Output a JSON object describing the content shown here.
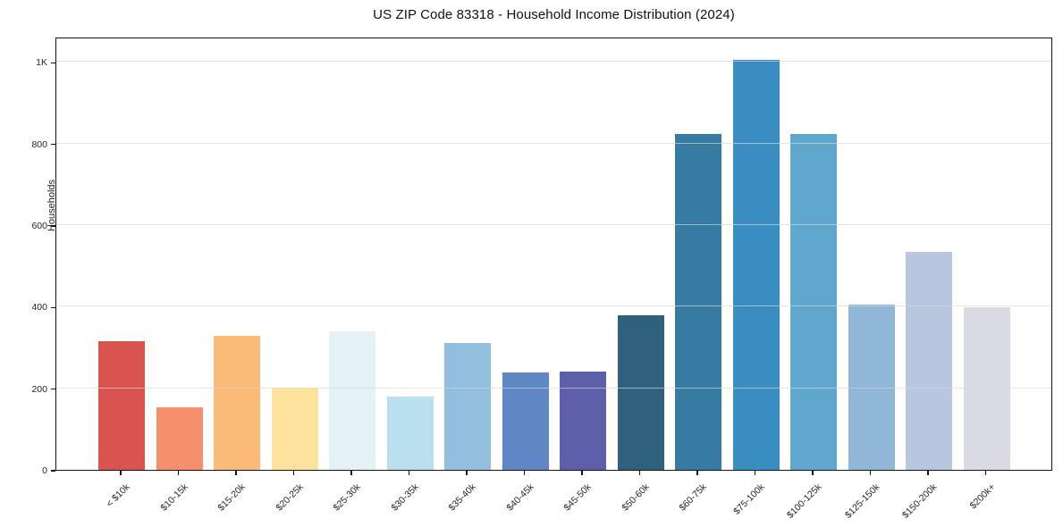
{
  "chart_data": {
    "type": "bar",
    "title": "US ZIP Code 83318 - Household Income Distribution (2024)",
    "xlabel": "",
    "ylabel": "Households",
    "categories": [
      "< $10k",
      "$10-15k",
      "$15-20k",
      "$20-25k",
      "$25-30k",
      "$30-35k",
      "$35-40k",
      "$40-45k",
      "$45-50k",
      "$50-60k",
      "$60-75k",
      "$75-100k",
      "$100-125k",
      "$125-150k",
      "$150-200k",
      "$200k+"
    ],
    "values": [
      315,
      154,
      328,
      201,
      339,
      180,
      310,
      238,
      242,
      378,
      823,
      1005,
      823,
      406,
      534,
      399
    ],
    "bar_colors": [
      "#d9544f",
      "#f58f6c",
      "#fbbb78",
      "#fde39e",
      "#e4f1f6",
      "#badfee",
      "#92bfdd",
      "#5e87c4",
      "#5d60a9",
      "#2f617c",
      "#377ba2",
      "#398dc1",
      "#60a7ce",
      "#90b7d5",
      "#b8c6df",
      "#dadae5"
    ],
    "ylim": [
      0,
      1062
    ],
    "yticks": [
      {
        "value": 0,
        "label": "0"
      },
      {
        "value": 200,
        "label": "200"
      },
      {
        "value": 400,
        "label": "400"
      },
      {
        "value": 600,
        "label": "600"
      },
      {
        "value": 800,
        "label": "800"
      },
      {
        "value": 1000,
        "label": "1K"
      }
    ],
    "grid": "horizontal-above-bars",
    "legend": "none",
    "background": "#ffffff",
    "x_tick_rotation_deg": 45
  }
}
